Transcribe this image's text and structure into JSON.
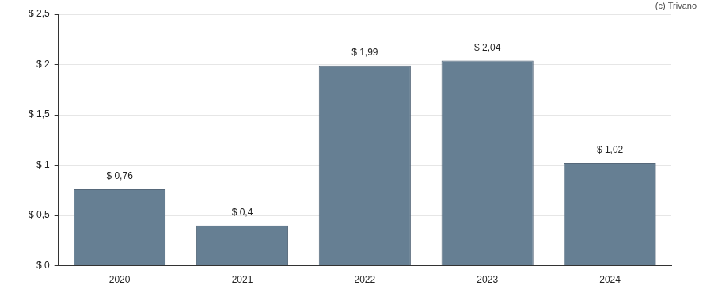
{
  "chart_data": {
    "type": "bar",
    "annotation": "(c) Trivano",
    "categories": [
      "2020",
      "2021",
      "2022",
      "2023",
      "2024"
    ],
    "values": [
      0.76,
      0.4,
      1.99,
      2.04,
      1.02
    ],
    "value_labels": [
      "$ 0,76",
      "$ 0,4",
      "$ 1,99",
      "$ 2,04",
      "$ 1,02"
    ],
    "data_labels": true,
    "color": "#667f93",
    "ylim": [
      0,
      2.5
    ],
    "yticks": [
      {
        "value": 0,
        "label": "$ 0"
      },
      {
        "value": 0.5,
        "label": "$ 0,5"
      },
      {
        "value": 1,
        "label": "$ 1"
      },
      {
        "value": 1.5,
        "label": "$ 1,5"
      },
      {
        "value": 2,
        "label": "$ 2"
      },
      {
        "value": 2.5,
        "label": "$ 2,5"
      }
    ],
    "grid": true
  }
}
